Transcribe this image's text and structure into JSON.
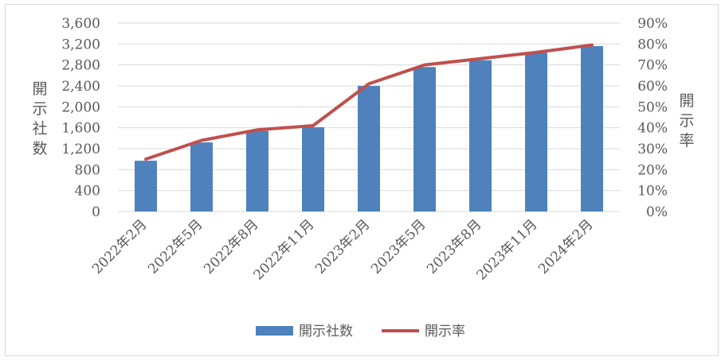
{
  "chart_data": {
    "type": "bar",
    "categories": [
      "2022年2月",
      "2022年5月",
      "2022年8月",
      "2022年11月",
      "2023年2月",
      "2023年5月",
      "2023年8月",
      "2023年11月",
      "2024年2月"
    ],
    "series": [
      {
        "name": "開示社数",
        "type": "bar",
        "axis": "left",
        "color": "#4f81bd",
        "values": [
          970,
          1320,
          1540,
          1610,
          2400,
          2760,
          2890,
          3030,
          3160
        ]
      },
      {
        "name": "開示率",
        "type": "line",
        "axis": "right",
        "color": "#c0504d",
        "values": [
          0.25,
          0.34,
          0.39,
          0.41,
          0.61,
          0.7,
          0.73,
          0.76,
          0.795
        ]
      }
    ],
    "ylabel": "開示社数",
    "y2label": "開示率",
    "ylim": [
      0,
      3600
    ],
    "y2lim": [
      0,
      0.9
    ],
    "yticks": [
      "0",
      "400",
      "800",
      "1,200",
      "1,600",
      "2,000",
      "2,400",
      "2,800",
      "3,200",
      "3,600"
    ],
    "y2ticks": [
      "0%",
      "10%",
      "20%",
      "30%",
      "40%",
      "50%",
      "60%",
      "70%",
      "80%",
      "90%"
    ],
    "grid": true,
    "legend": "bottom"
  }
}
